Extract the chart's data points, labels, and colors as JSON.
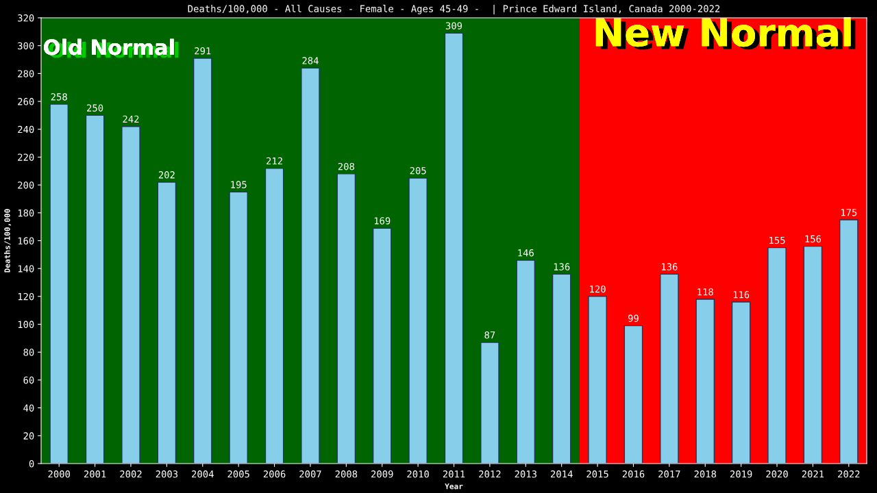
{
  "chart_data": {
    "type": "bar",
    "title": "Deaths/100,000 - All Causes - Female - Ages 45-49 -  | Prince Edward Island, Canada 2000-2022",
    "xlabel": "Year",
    "ylabel": "Deaths/100,000",
    "categories": [
      "2000",
      "2001",
      "2002",
      "2003",
      "2004",
      "2005",
      "2006",
      "2007",
      "2008",
      "2009",
      "2010",
      "2011",
      "2012",
      "2013",
      "2014",
      "2015",
      "2016",
      "2017",
      "2018",
      "2019",
      "2020",
      "2021",
      "2022"
    ],
    "values": [
      258,
      250,
      242,
      202,
      291,
      195,
      212,
      284,
      208,
      169,
      205,
      309,
      87,
      146,
      136,
      120,
      99,
      136,
      118,
      116,
      155,
      156,
      175
    ],
    "color": "#87ceeb",
    "data_labels": true,
    "ylim": [
      0,
      320
    ],
    "yticks": [
      0,
      20,
      40,
      60,
      80,
      100,
      120,
      140,
      160,
      180,
      200,
      220,
      240,
      260,
      280,
      300,
      320
    ],
    "grid": false,
    "legend": false,
    "bands": [
      {
        "axis": "x",
        "from": "2000",
        "to": "2014",
        "label": "Old Normal",
        "color": "#006400"
      },
      {
        "axis": "x",
        "from": "2015",
        "to": "2022",
        "label": "New Normal",
        "color": "#ff0000"
      }
    ]
  }
}
